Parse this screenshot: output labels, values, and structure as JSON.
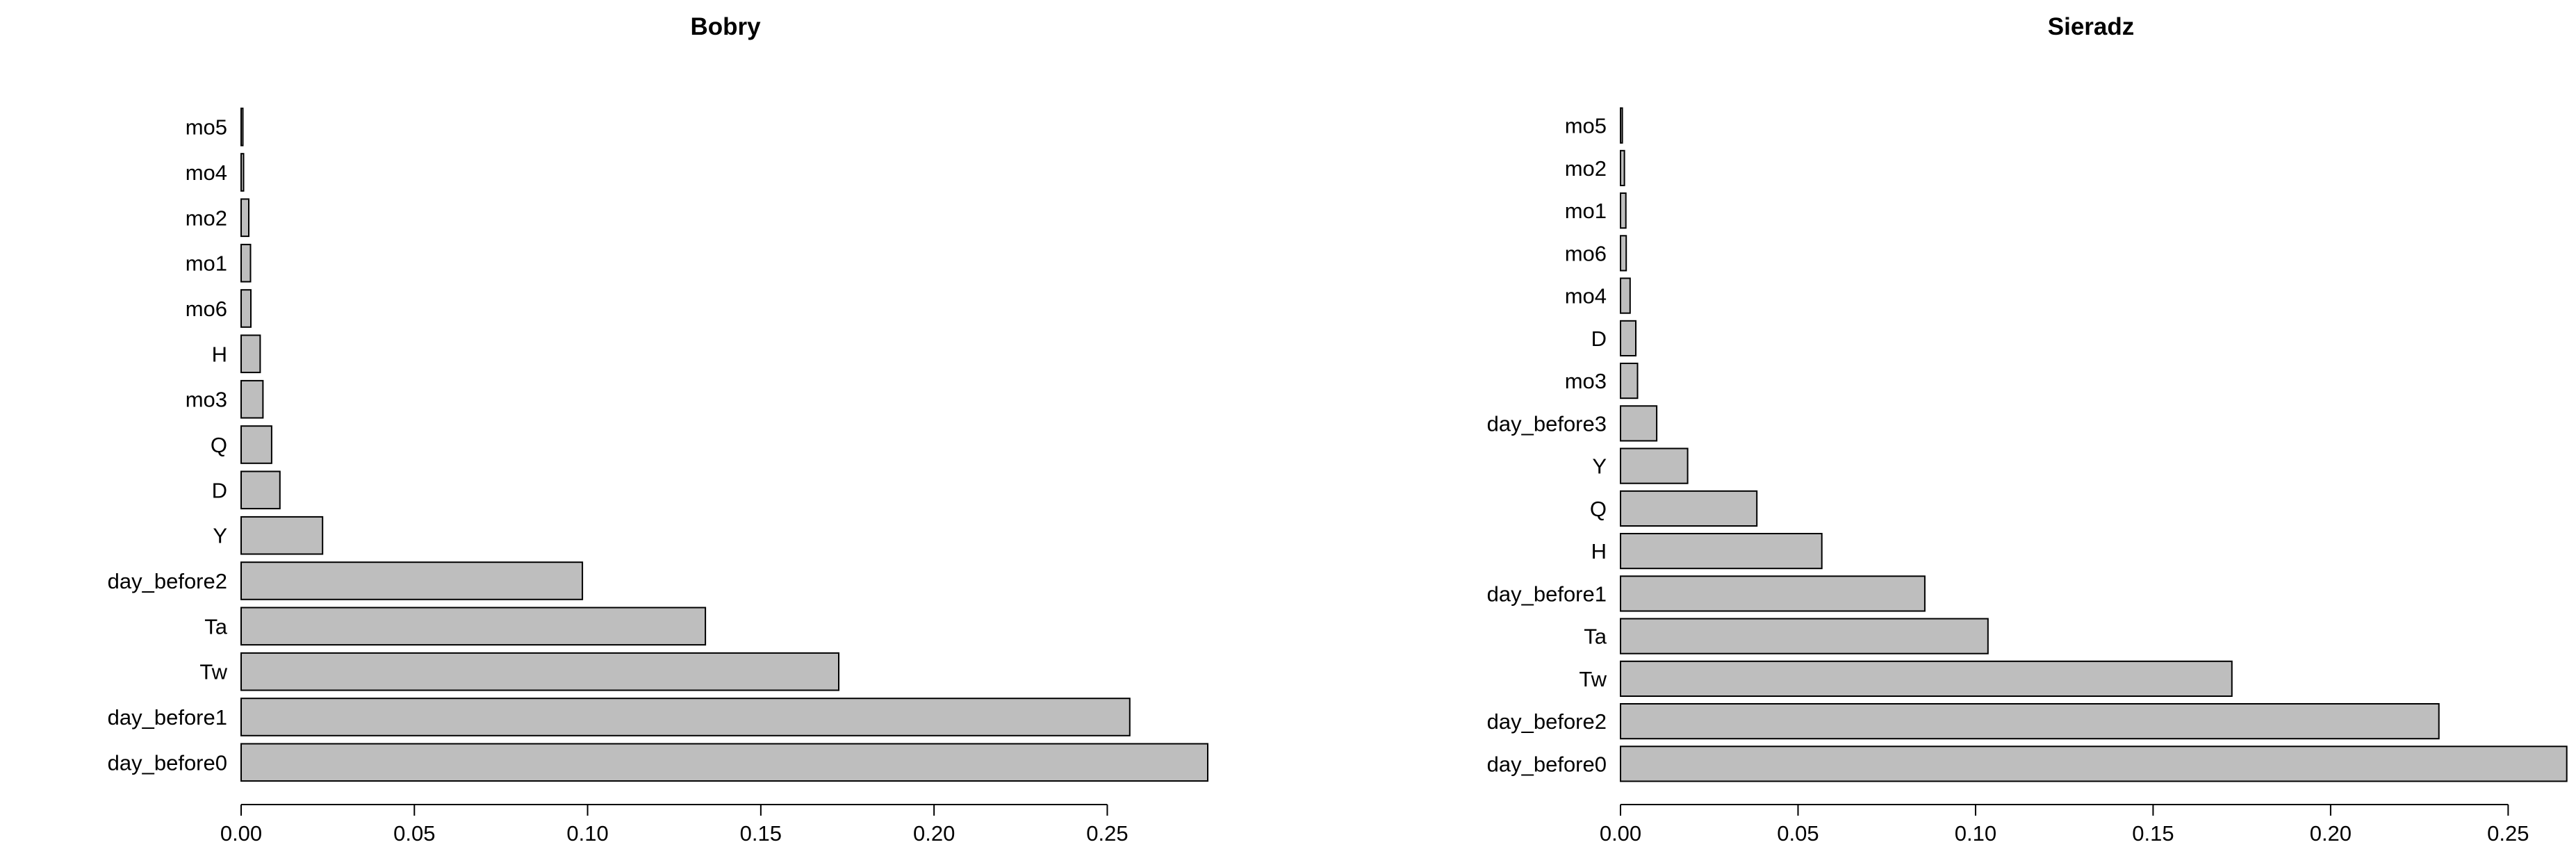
{
  "chart_data": [
    {
      "type": "bar",
      "orientation": "horizontal",
      "title": "Bobry",
      "xlabel": "",
      "ylabel": "",
      "xlim": [
        0,
        0.28
      ],
      "xticks": [
        "0.00",
        "0.05",
        "0.10",
        "0.15",
        "0.20",
        "0.25"
      ],
      "grid": false,
      "bar_color": "#bebebe",
      "categories": [
        "mo5",
        "mo4",
        "mo2",
        "mo1",
        "mo6",
        "H",
        "mo3",
        "Q",
        "D",
        "Y",
        "day_before2",
        "Ta",
        "Tw",
        "day_before1",
        "day_before0"
      ],
      "values": [
        0.0005,
        0.0007,
        0.0022,
        0.0027,
        0.0028,
        0.0055,
        0.0063,
        0.0088,
        0.0112,
        0.0235,
        0.0985,
        0.134,
        0.1725,
        0.2565,
        0.279
      ]
    },
    {
      "type": "bar",
      "orientation": "horizontal",
      "title": "Sieradz",
      "xlabel": "",
      "ylabel": "",
      "xlim": [
        0,
        0.265
      ],
      "xticks": [
        "0.00",
        "0.05",
        "0.10",
        "0.15",
        "0.20",
        "0.25"
      ],
      "grid": false,
      "bar_color": "#bebebe",
      "categories": [
        "mo5",
        "mo2",
        "mo1",
        "mo6",
        "mo4",
        "D",
        "mo3",
        "day_before3",
        "Y",
        "Q",
        "H",
        "day_before1",
        "Ta",
        "Tw",
        "day_before2",
        "day_before0"
      ],
      "values": [
        0.0005,
        0.0011,
        0.0015,
        0.0016,
        0.0027,
        0.0043,
        0.0048,
        0.0102,
        0.0189,
        0.0384,
        0.0567,
        0.0857,
        0.1035,
        0.1722,
        0.2305,
        0.2665
      ]
    }
  ]
}
